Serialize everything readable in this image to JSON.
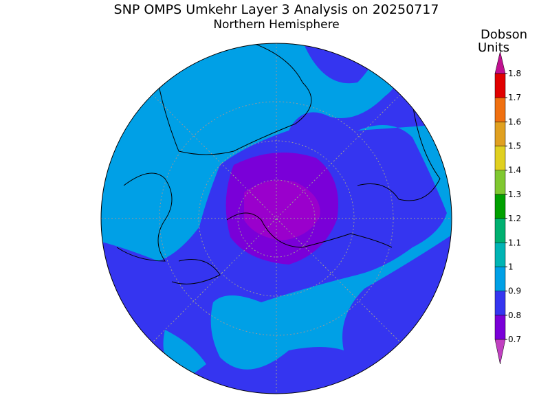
{
  "header": {
    "title": "SNP OMPS Umkehr Layer 3 Analysis on 20250717",
    "subtitle": "Northern Hemisphere"
  },
  "colorbar": {
    "label_lines": [
      "Dobson",
      "Units"
    ],
    "ticks": [
      0.7,
      0.8,
      0.9,
      1,
      1.1,
      1.2,
      1.3,
      1.4,
      1.5,
      1.6,
      1.7,
      1.8
    ],
    "colors": [
      "#7a00d8",
      "#3535f0",
      "#00a0e6",
      "#00b4b4",
      "#00b070",
      "#00a000",
      "#80c830",
      "#e0d020",
      "#e0a020",
      "#f07010",
      "#e00000"
    ],
    "under_color": "#c040c0",
    "over_color": "#c01090"
  }
}
